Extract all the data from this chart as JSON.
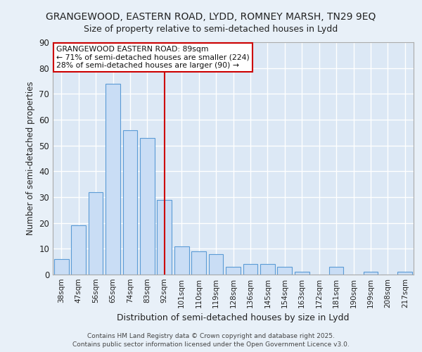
{
  "title_line1": "GRANGEWOOD, EASTERN ROAD, LYDD, ROMNEY MARSH, TN29 9EQ",
  "title_line2": "Size of property relative to semi-detached houses in Lydd",
  "xlabel": "Distribution of semi-detached houses by size in Lydd",
  "ylabel": "Number of semi-detached properties",
  "categories": [
    "38sqm",
    "47sqm",
    "56sqm",
    "65sqm",
    "74sqm",
    "83sqm",
    "92sqm",
    "101sqm",
    "110sqm",
    "119sqm",
    "128sqm",
    "136sqm",
    "145sqm",
    "154sqm",
    "163sqm",
    "172sqm",
    "181sqm",
    "190sqm",
    "199sqm",
    "208sqm",
    "217sqm"
  ],
  "values": [
    6,
    19,
    32,
    74,
    56,
    53,
    29,
    11,
    9,
    8,
    3,
    4,
    4,
    3,
    1,
    0,
    3,
    0,
    1,
    0,
    1
  ],
  "bar_color": "#c9ddf5",
  "bar_edge_color": "#5b9bd5",
  "bar_edge_width": 0.8,
  "vline_x_index": 6,
  "vline_color": "#cc0000",
  "annotation_title": "GRANGEWOOD EASTERN ROAD: 89sqm",
  "annotation_line1": "← 71% of semi-detached houses are smaller (224)",
  "annotation_line2": "28% of semi-detached houses are larger (90) →",
  "annotation_box_color": "#ffffff",
  "annotation_box_edge": "#cc0000",
  "ylim": [
    0,
    90
  ],
  "yticks": [
    0,
    10,
    20,
    30,
    40,
    50,
    60,
    70,
    80,
    90
  ],
  "background_color": "#e8f0f8",
  "plot_bg_color": "#dce8f5",
  "grid_color": "#ffffff",
  "footer_line1": "Contains HM Land Registry data © Crown copyright and database right 2025.",
  "footer_line2": "Contains public sector information licensed under the Open Government Licence v3.0."
}
